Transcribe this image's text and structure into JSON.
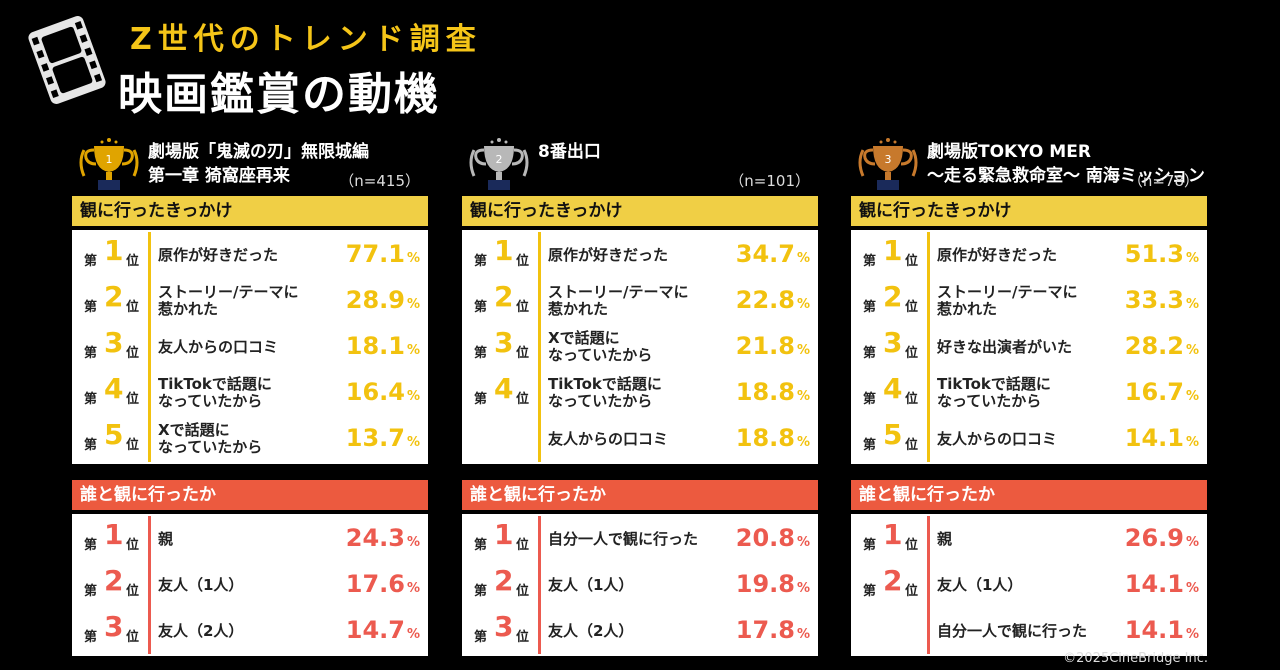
{
  "header": {
    "subtitle": "Z世代のトレンド調査",
    "title": "映画鑑賞の動機"
  },
  "colors": {
    "yellow": "#f2c20f",
    "red": "#ec5a4f",
    "gold_trophy": "#e0a400",
    "silver_trophy": "#b8b8b8",
    "bronze_trophy": "#c7792c"
  },
  "columns": [
    {
      "title_line1": "劇場版「鬼滅の刃」無限城編",
      "title_line2": "第一章 猗窩座再来",
      "n": "（n=415）",
      "trophy_rank": "1",
      "trigger": {
        "heading": "観に行ったきっかけ",
        "rows": [
          {
            "rank": "1",
            "label": "原作が好きだった",
            "value": "77.1"
          },
          {
            "rank": "2",
            "label": "ストーリー/テーマに 惹かれた",
            "value": "28.9"
          },
          {
            "rank": "3",
            "label": "友人からの口コミ",
            "value": "18.1"
          },
          {
            "rank": "4",
            "label": "TikTokで話題に なっていたから",
            "value": "16.4"
          },
          {
            "rank": "5",
            "label": "Xで話題に なっていたから",
            "value": "13.7"
          }
        ]
      },
      "companion": {
        "heading": "誰と観に行ったか",
        "rows": [
          {
            "rank": "1",
            "label": "親",
            "value": "24.3"
          },
          {
            "rank": "2",
            "label": "友人（1人）",
            "value": "17.6"
          },
          {
            "rank": "3",
            "label": "友人（2人）",
            "value": "14.7"
          }
        ]
      }
    },
    {
      "title_line1": "8番出口",
      "title_line2": "",
      "n": "（n=101）",
      "trophy_rank": "2",
      "trigger": {
        "heading": "観に行ったきっかけ",
        "rows": [
          {
            "rank": "1",
            "label": "原作が好きだった",
            "value": "34.7"
          },
          {
            "rank": "2",
            "label": "ストーリー/テーマに 惹かれた",
            "value": "22.8"
          },
          {
            "rank": "3",
            "label": "Xで話題に なっていたから",
            "value": "21.8"
          },
          {
            "rank": "4",
            "label": "TikTokで話題に なっていたから",
            "value": "18.8"
          },
          {
            "rank": "",
            "label": "友人からの口コミ",
            "value": "18.8"
          }
        ]
      },
      "companion": {
        "heading": "誰と観に行ったか",
        "rows": [
          {
            "rank": "1",
            "label": "自分一人で観に行った",
            "value": "20.8"
          },
          {
            "rank": "2",
            "label": "友人（1人）",
            "value": "19.8"
          },
          {
            "rank": "3",
            "label": "友人（2人）",
            "value": "17.8"
          }
        ]
      }
    },
    {
      "title_line1": "劇場版TOKYO MER",
      "title_line2": "～走る緊急救命室～ 南海ミッション",
      "n": "（n=78）",
      "trophy_rank": "3",
      "trigger": {
        "heading": "観に行ったきっかけ",
        "rows": [
          {
            "rank": "1",
            "label": "原作が好きだった",
            "value": "51.3"
          },
          {
            "rank": "2",
            "label": "ストーリー/テーマに 惹かれた",
            "value": "33.3"
          },
          {
            "rank": "3",
            "label": "好きな出演者がいた",
            "value": "28.2"
          },
          {
            "rank": "4",
            "label": "TikTokで話題に なっていたから",
            "value": "16.7"
          },
          {
            "rank": "5",
            "label": "友人からの口コミ",
            "value": "14.1"
          }
        ]
      },
      "companion": {
        "heading": "誰と観に行ったか",
        "rows": [
          {
            "rank": "1",
            "label": "親",
            "value": "26.9"
          },
          {
            "rank": "2",
            "label": "友人（1人）",
            "value": "14.1"
          },
          {
            "rank": "",
            "label": "自分一人で観に行った",
            "value": "14.1"
          }
        ]
      }
    }
  ],
  "rank_prefix": "第",
  "rank_suffix": "位",
  "percent_sign": "%",
  "copyright": "©2025CineBridge Inc."
}
